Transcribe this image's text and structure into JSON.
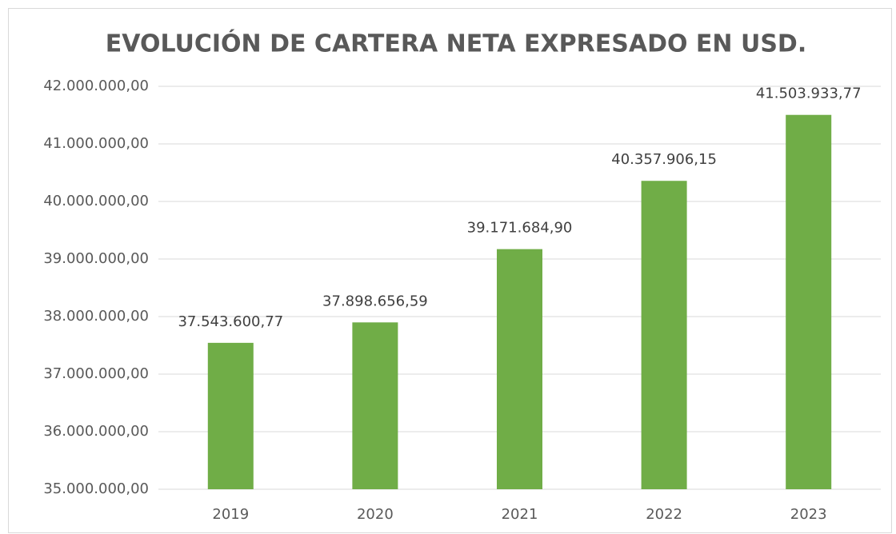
{
  "chart_data": {
    "type": "bar",
    "title": "EVOLUCIÓN DE CARTERA NETA EXPRESADO EN USD.",
    "categories": [
      "2019",
      "2020",
      "2021",
      "2022",
      "2023"
    ],
    "values": [
      37543600.77,
      37898656.59,
      39171684.9,
      40357906.15,
      41503933.77
    ],
    "value_labels": [
      "37.543.600,77",
      "37.898.656,59",
      "39.171.684,90",
      "40.357.906,15",
      "41.503.933,77"
    ],
    "color": "#70ad47",
    "ylim": [
      35000000,
      42000000
    ],
    "yticks": [
      {
        "value": 35000000,
        "label": "35.000.000,00"
      },
      {
        "value": 36000000,
        "label": "36.000.000,00"
      },
      {
        "value": 37000000,
        "label": "37.000.000,00"
      },
      {
        "value": 38000000,
        "label": "38.000.000,00"
      },
      {
        "value": 39000000,
        "label": "39.000.000,00"
      },
      {
        "value": 40000000,
        "label": "40.000.000,00"
      },
      {
        "value": 41000000,
        "label": "41.000.000,00"
      },
      {
        "value": 42000000,
        "label": "42.000.000,00"
      }
    ],
    "grid": true
  }
}
